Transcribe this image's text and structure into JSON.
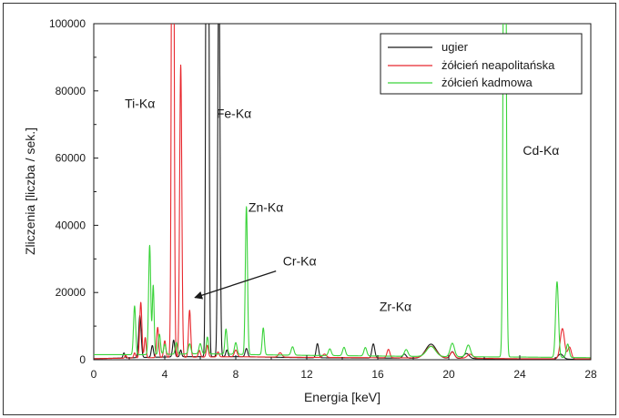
{
  "chart_data": {
    "type": "line",
    "xlabel": "Energia [keV]",
    "ylabel": "Zliczenia [liczba / sek.]",
    "xlim": [
      0,
      28
    ],
    "ylim": [
      0,
      100000
    ],
    "xticks": [
      0,
      4,
      8,
      12,
      16,
      20,
      24,
      28
    ],
    "yticks": [
      0,
      20000,
      40000,
      60000,
      80000,
      100000
    ],
    "xtick_labels": [
      "0",
      "4",
      "8",
      "12",
      "16",
      "20",
      "24",
      "28"
    ],
    "ytick_labels": [
      "0",
      "20000",
      "40000",
      "60000",
      "80000",
      "100000"
    ],
    "grid": false,
    "legend_position": "top-right",
    "series": [
      {
        "name": "ugier",
        "color": "#1a1a1a",
        "baseline": [
          [
            0.0,
            300
          ],
          [
            3,
            700
          ],
          [
            5,
            900
          ],
          [
            8,
            900
          ],
          [
            12,
            600
          ],
          [
            16,
            500
          ],
          [
            20,
            400
          ],
          [
            24,
            200
          ],
          [
            28,
            150
          ]
        ],
        "peaks": [
          [
            1.7,
            1500,
            0.05
          ],
          [
            2.6,
            12500,
            0.07
          ],
          [
            3.3,
            3500,
            0.06
          ],
          [
            4.5,
            5000,
            0.06
          ],
          [
            4.9,
            2000,
            0.05
          ],
          [
            6.4,
            380000,
            0.06
          ],
          [
            7.05,
            120000,
            0.06
          ],
          [
            7.5,
            2000,
            0.06
          ],
          [
            8.6,
            2500,
            0.07
          ],
          [
            12.6,
            4200,
            0.07
          ],
          [
            15.75,
            4200,
            0.08
          ],
          [
            17.5,
            1200,
            0.1
          ],
          [
            19.0,
            4200,
            0.3
          ],
          [
            20.2,
            2000,
            0.12
          ],
          [
            21.0,
            1500,
            0.15
          ],
          [
            26.3,
            1500,
            0.15
          ]
        ]
      },
      {
        "name": "żółcień neapolitańska",
        "color": "#e8282e",
        "baseline": [
          [
            0.0,
            300
          ],
          [
            3,
            600
          ],
          [
            5,
            700
          ],
          [
            8,
            900
          ],
          [
            12,
            700
          ],
          [
            16,
            600
          ],
          [
            20,
            500
          ],
          [
            24,
            300
          ],
          [
            28,
            250
          ]
        ],
        "peaks": [
          [
            1.8,
            800,
            0.05
          ],
          [
            2.3,
            1500,
            0.05
          ],
          [
            2.65,
            16500,
            0.06
          ],
          [
            2.9,
            6000,
            0.05
          ],
          [
            3.6,
            9000,
            0.06
          ],
          [
            4.0,
            5000,
            0.06
          ],
          [
            4.45,
            260000,
            0.06
          ],
          [
            4.9,
            87000,
            0.06
          ],
          [
            5.4,
            14000,
            0.06
          ],
          [
            5.95,
            2000,
            0.06
          ],
          [
            6.4,
            3500,
            0.06
          ],
          [
            7.0,
            1500,
            0.06
          ],
          [
            8.0,
            2000,
            0.08
          ],
          [
            10.5,
            1300,
            0.1
          ],
          [
            13.0,
            1000,
            0.1
          ],
          [
            16.6,
            2500,
            0.08
          ],
          [
            19.0,
            3500,
            0.3
          ],
          [
            20.2,
            1800,
            0.12
          ],
          [
            21.2,
            1200,
            0.15
          ],
          [
            26.4,
            9000,
            0.12
          ],
          [
            26.8,
            3500,
            0.1
          ]
        ]
      },
      {
        "name": "żółcień kadmowa",
        "color": "#3ad33a",
        "baseline": [
          [
            0.0,
            1500
          ],
          [
            3,
            1500
          ],
          [
            6,
            1800
          ],
          [
            9,
            1500
          ],
          [
            12,
            1300
          ],
          [
            16,
            1100
          ],
          [
            20,
            900
          ],
          [
            24,
            800
          ],
          [
            28,
            600
          ]
        ],
        "peaks": [
          [
            2.3,
            14500,
            0.06
          ],
          [
            3.15,
            32500,
            0.06
          ],
          [
            3.35,
            20500,
            0.05
          ],
          [
            3.7,
            6000,
            0.06
          ],
          [
            4.0,
            3000,
            0.06
          ],
          [
            4.65,
            3500,
            0.06
          ],
          [
            5.4,
            3000,
            0.07
          ],
          [
            6.0,
            3000,
            0.07
          ],
          [
            6.4,
            5000,
            0.06
          ],
          [
            7.45,
            7500,
            0.06
          ],
          [
            8.0,
            3500,
            0.07
          ],
          [
            8.6,
            44000,
            0.06
          ],
          [
            9.55,
            8000,
            0.06
          ],
          [
            11.2,
            2500,
            0.08
          ],
          [
            13.3,
            2000,
            0.08
          ],
          [
            14.1,
            2500,
            0.08
          ],
          [
            15.3,
            2500,
            0.08
          ],
          [
            17.6,
            2000,
            0.1
          ],
          [
            19.0,
            3000,
            0.25
          ],
          [
            20.2,
            4000,
            0.12
          ],
          [
            21.1,
            3500,
            0.12
          ],
          [
            23.15,
            230000,
            0.07
          ],
          [
            26.1,
            22500,
            0.08
          ],
          [
            26.7,
            4000,
            0.08
          ]
        ]
      }
    ],
    "annotations": [
      {
        "text": "Ti-Kα",
        "x": 2.6,
        "y": 75000
      },
      {
        "text": "Fe-Kα",
        "x": 7.9,
        "y": 72000
      },
      {
        "text": "Zn-Kα",
        "x": 9.7,
        "y": 44000
      },
      {
        "text": "Cr-Kα",
        "x": 11.6,
        "y": 28000,
        "arrow_to": [
          5.7,
          18500
        ]
      },
      {
        "text": "Zr-Kα",
        "x": 17.0,
        "y": 14500
      },
      {
        "text": "Cd-Kα",
        "x": 25.2,
        "y": 61000
      }
    ]
  }
}
